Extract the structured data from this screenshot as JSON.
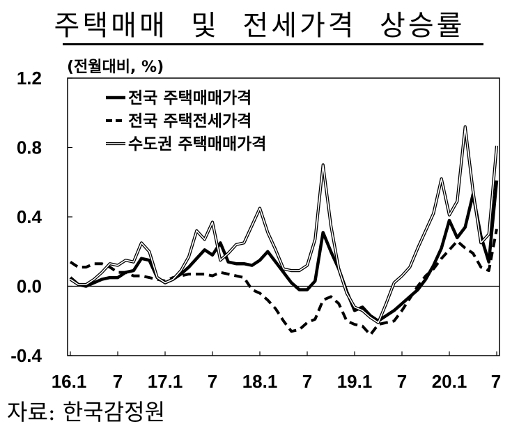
{
  "title": "주택매매  및  전세가격  상승률",
  "unit_label": "(전월대비, %)",
  "source": "자료:  한국감정원",
  "chart_data": {
    "type": "line",
    "title": "주택매매 및 전세가격 상승률",
    "ylabel": "(전월대비, %)",
    "xlabel": "",
    "ylim": [
      -0.4,
      1.2
    ],
    "yticks": [
      "1.2",
      "0.8",
      "0.4",
      "0.0",
      "-0.4"
    ],
    "ytick_values": [
      1.2,
      0.8,
      0.4,
      0.0,
      -0.4
    ],
    "xtick_labels": [
      "16.1",
      "7",
      "17.1",
      "7",
      "18.1",
      "7",
      "19.1",
      "7",
      "20.1",
      "7"
    ],
    "xtick_positions": [
      0,
      6,
      12,
      18,
      24,
      30,
      36,
      42,
      48,
      54
    ],
    "x_count": 55,
    "grid": false,
    "zero_line": true,
    "legend_position": "top-left",
    "series": [
      {
        "name": "전국 주택매매가격",
        "style": "solid-thick",
        "values": [
          0.05,
          0.01,
          0.0,
          0.02,
          0.04,
          0.05,
          0.05,
          0.08,
          0.09,
          0.16,
          0.15,
          0.05,
          0.02,
          0.04,
          0.07,
          0.11,
          0.16,
          0.21,
          0.18,
          0.25,
          0.14,
          0.13,
          0.13,
          0.12,
          0.15,
          0.2,
          0.14,
          0.08,
          0.02,
          -0.02,
          -0.02,
          0.03,
          0.31,
          0.2,
          0.1,
          -0.03,
          -0.14,
          -0.12,
          -0.17,
          -0.2,
          -0.17,
          -0.14,
          -0.1,
          -0.06,
          -0.02,
          0.04,
          0.12,
          0.22,
          0.38,
          0.28,
          0.34,
          0.53,
          0.29,
          0.14,
          0.61
        ]
      },
      {
        "name": "전국 주택전세가격",
        "style": "dashed",
        "values": [
          0.14,
          0.11,
          0.11,
          0.13,
          0.13,
          0.11,
          0.08,
          0.08,
          0.06,
          0.06,
          0.05,
          0.04,
          0.03,
          0.05,
          0.06,
          0.07,
          0.07,
          0.07,
          0.06,
          0.08,
          0.07,
          0.06,
          0.05,
          -0.02,
          -0.04,
          -0.08,
          -0.13,
          -0.2,
          -0.26,
          -0.25,
          -0.21,
          -0.19,
          -0.08,
          -0.06,
          -0.1,
          -0.2,
          -0.22,
          -0.23,
          -0.28,
          -0.22,
          -0.21,
          -0.2,
          -0.14,
          -0.07,
          0.0,
          0.06,
          0.1,
          0.16,
          0.21,
          0.26,
          0.22,
          0.19,
          0.11,
          0.09,
          0.33
        ]
      },
      {
        "name": "수도권 주택매매가격",
        "style": "double",
        "values": [
          0.04,
          0.01,
          0.01,
          0.04,
          0.08,
          0.13,
          0.12,
          0.15,
          0.14,
          0.25,
          0.2,
          0.05,
          0.02,
          0.04,
          0.09,
          0.17,
          0.32,
          0.27,
          0.37,
          0.15,
          0.19,
          0.24,
          0.25,
          0.35,
          0.45,
          0.31,
          0.21,
          0.1,
          0.09,
          0.09,
          0.12,
          0.27,
          0.7,
          0.35,
          0.1,
          -0.04,
          -0.12,
          -0.14,
          -0.18,
          -0.21,
          -0.1,
          0.02,
          0.06,
          0.11,
          0.22,
          0.32,
          0.42,
          0.62,
          0.41,
          0.49,
          0.92,
          0.55,
          0.25,
          0.3,
          0.81
        ]
      }
    ]
  }
}
